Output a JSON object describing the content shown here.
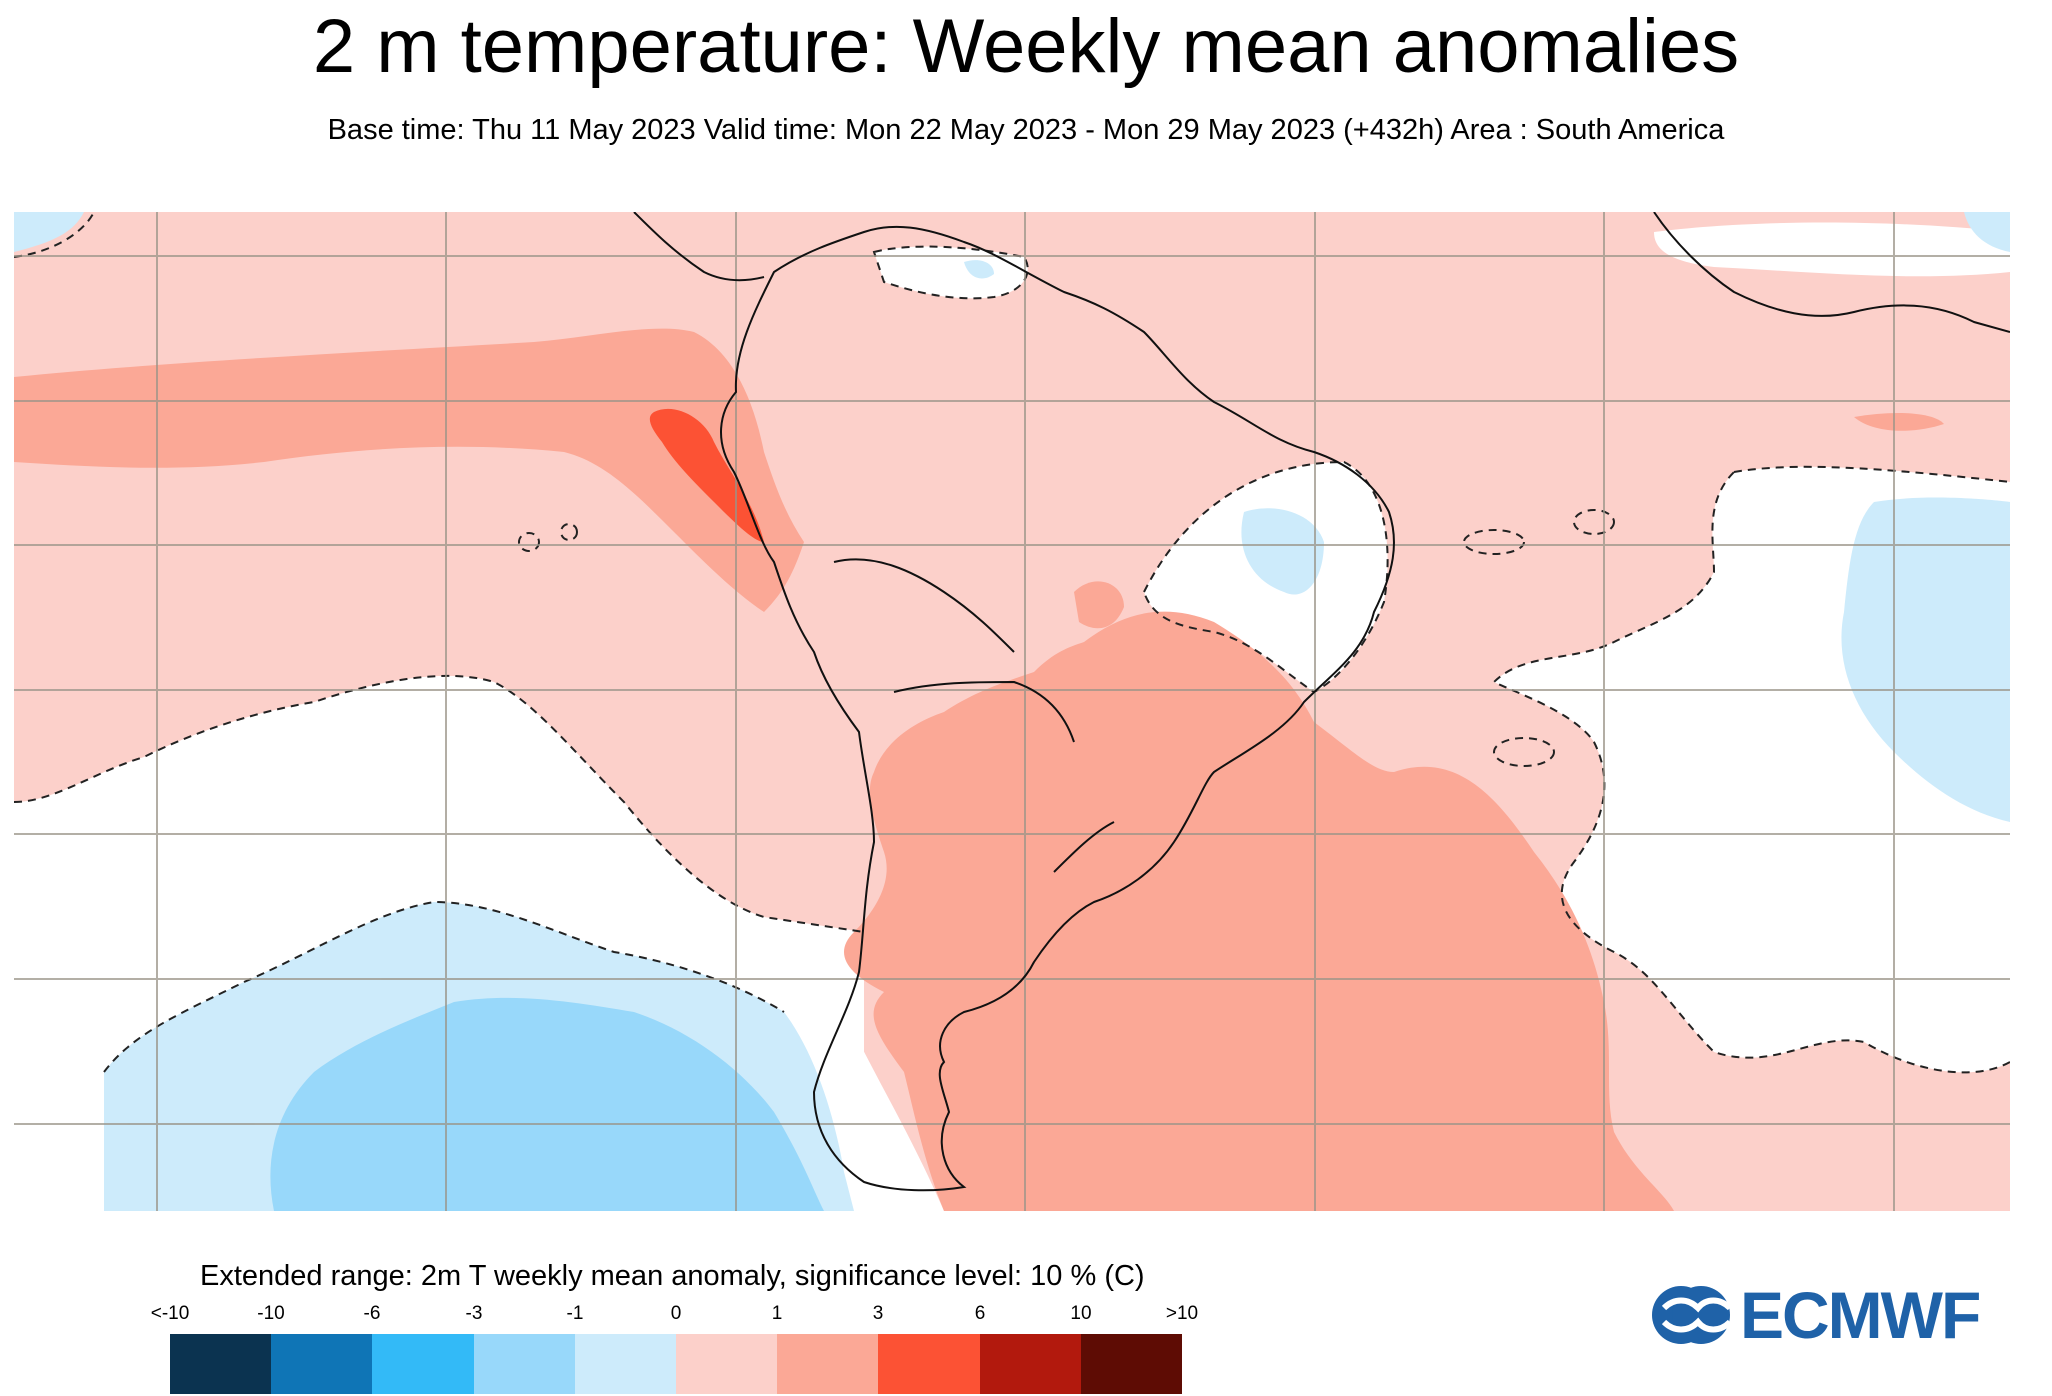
{
  "title": "2 m temperature: Weekly mean anomalies",
  "subtitle": "Base time: Thu 11 May 2023 Valid time: Mon 22 May 2023 - Mon 29 May 2023 (+432h) Area : South America",
  "legend": {
    "title": "Extended range: 2m T weekly mean anomaly, significance level: 10 % (C)",
    "ticks": [
      "<-10",
      "-10",
      "-6",
      "-3",
      "-1",
      "0",
      "1",
      "3",
      "6",
      "10",
      ">10"
    ],
    "colors": [
      "#0b3350",
      "#0f75b6",
      "#33baf7",
      "#98d8fa",
      "#cdebfb",
      "#fcd0ca",
      "#fba896",
      "#fc5234",
      "#b2190d",
      "#5e0c04"
    ]
  },
  "palette": {
    "neutral": "#ffffff",
    "coast": "#111111",
    "grid": "#9a9488",
    "light_positive": "#fcd0ca",
    "moderate_positive": "#fba896",
    "strong_positive": "#fc5234",
    "light_negative": "#cdebfb",
    "moderate_negative": "#98d8fa"
  },
  "logo": {
    "text": "ECMWF",
    "color": "#1f62a8"
  }
}
